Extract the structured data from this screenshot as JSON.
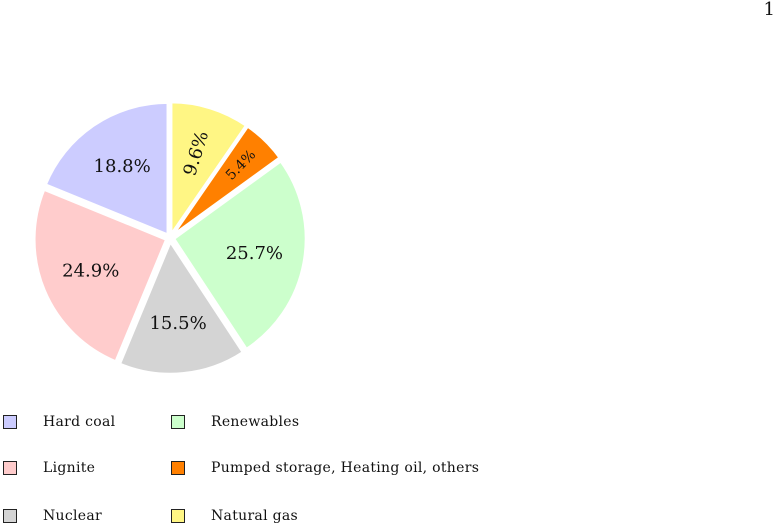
{
  "page": {
    "number": "1"
  },
  "chart_data": {
    "type": "pie",
    "title": "",
    "slices": [
      {
        "name": "Natural gas",
        "value": 9.6,
        "label": "9.6%",
        "color": "#fff684",
        "rotated": true
      },
      {
        "name": "Pumped storage, Heating oil, others",
        "value": 5.4,
        "label": "5.4%",
        "color": "#ff8000",
        "rotated": true
      },
      {
        "name": "Renewables",
        "value": 25.7,
        "label": "25.7%",
        "color": "#ccffcc",
        "rotated": false
      },
      {
        "name": "Nuclear",
        "value": 15.5,
        "label": "15.5%",
        "color": "#d4d4d4",
        "rotated": false
      },
      {
        "name": "Lignite",
        "value": 24.9,
        "label": "24.9%",
        "color": "#ffcccc",
        "rotated": false
      },
      {
        "name": "Hard coal",
        "value": 18.8,
        "label": "18.8%",
        "color": "#ccccff",
        "rotated": false
      }
    ],
    "legend": {
      "placement": "bottom",
      "columns": [
        [
          "Hard coal",
          "Lignite",
          "Nuclear"
        ],
        [
          "Renewables",
          "Pumped storage, Heating oil, others",
          "Natural gas"
        ]
      ]
    }
  }
}
